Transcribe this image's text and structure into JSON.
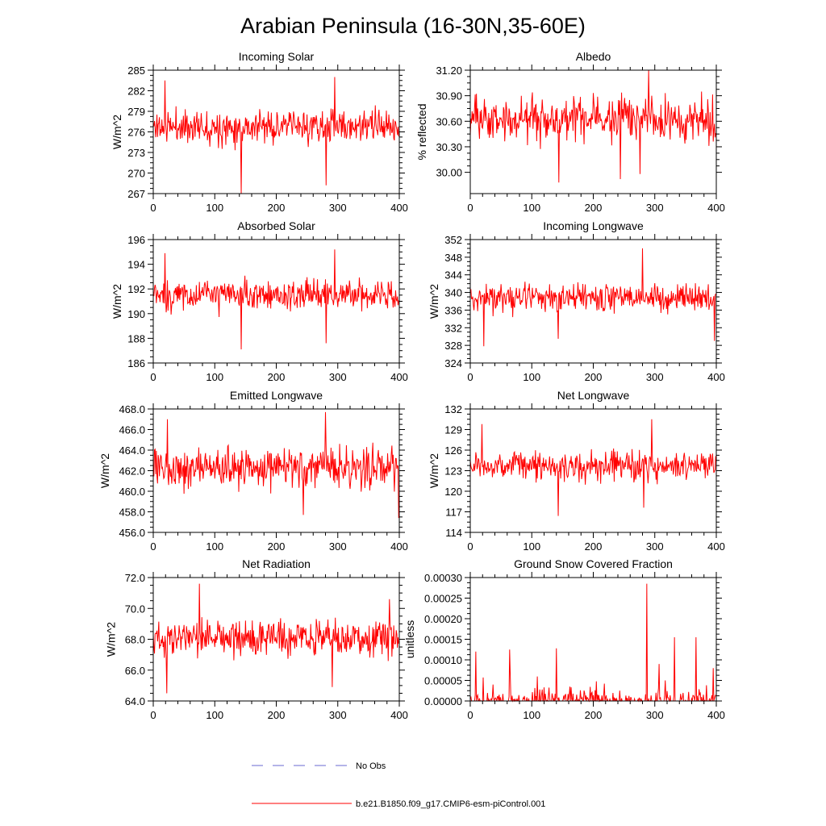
{
  "title": "Arabian Peninsula (16-30N,35-60E)",
  "legend": {
    "obs_label": "No Obs",
    "model_label": "b.e21.B1850.f09_g17.CMIP6-esm-piControl.001",
    "obs_color": "#6a6ad0",
    "model_color": "#ff0000"
  },
  "chart_data": [
    {
      "type": "line",
      "title": "Incoming Solar",
      "ylabel": "W/m^2",
      "xlim": [
        0,
        400
      ],
      "ylim": [
        267,
        285
      ],
      "xticks": [
        0,
        100,
        200,
        300,
        400
      ],
      "xtick_labels": [
        "0",
        "100",
        "200",
        "300",
        "400"
      ],
      "yticks": [
        267,
        270,
        273,
        276,
        279,
        282,
        285
      ],
      "ytick_labels": [
        "267",
        "270",
        "273",
        "276",
        "279",
        "282",
        "285"
      ],
      "mean": 276.8,
      "sd": 2.0,
      "seed": 11,
      "spikes": [
        {
          "x": 143,
          "y": 267.0
        },
        {
          "x": 281,
          "y": 268.2
        },
        {
          "x": 295,
          "y": 284.0
        },
        {
          "x": 19,
          "y": 283.5
        }
      ],
      "series_name": "b.e21.B1850.f09_g17.CMIP6-esm-piControl.001",
      "n_points": 400
    },
    {
      "type": "line",
      "title": "Albedo",
      "ylabel": "% reflected",
      "xlim": [
        0,
        400
      ],
      "ylim": [
        29.75,
        31.2
      ],
      "xticks": [
        0,
        100,
        200,
        300,
        400
      ],
      "xtick_labels": [
        "0",
        "100",
        "200",
        "300",
        "400"
      ],
      "yticks": [
        30.0,
        30.3,
        30.6,
        30.9,
        31.2
      ],
      "ytick_labels": [
        "30.00",
        "30.30",
        "30.60",
        "30.90",
        "31.20"
      ],
      "mean": 30.63,
      "sd": 0.22,
      "seed": 23,
      "spikes": [
        {
          "x": 290,
          "y": 31.2
        },
        {
          "x": 144,
          "y": 29.88
        },
        {
          "x": 244,
          "y": 29.92
        },
        {
          "x": 276,
          "y": 29.98
        }
      ],
      "series_name": "b.e21.B1850.f09_g17.CMIP6-esm-piControl.001",
      "n_points": 400
    },
    {
      "type": "line",
      "title": "Absorbed Solar",
      "ylabel": "W/m^2",
      "xlim": [
        0,
        400
      ],
      "ylim": [
        186,
        196
      ],
      "xticks": [
        0,
        100,
        200,
        300,
        400
      ],
      "xtick_labels": [
        "0",
        "100",
        "200",
        "300",
        "400"
      ],
      "yticks": [
        186,
        188,
        190,
        192,
        194,
        196
      ],
      "ytick_labels": [
        "186",
        "188",
        "190",
        "192",
        "194",
        "196"
      ],
      "mean": 191.5,
      "sd": 1.05,
      "seed": 37,
      "spikes": [
        {
          "x": 143,
          "y": 187.1
        },
        {
          "x": 281,
          "y": 187.6
        },
        {
          "x": 295,
          "y": 195.2
        },
        {
          "x": 19,
          "y": 194.9
        }
      ],
      "series_name": "b.e21.B1850.f09_g17.CMIP6-esm-piControl.001",
      "n_points": 400
    },
    {
      "type": "line",
      "title": "Incoming Longwave",
      "ylabel": "W/m^2",
      "xlim": [
        0,
        400
      ],
      "ylim": [
        324,
        352
      ],
      "xticks": [
        0,
        100,
        200,
        300,
        400
      ],
      "xtick_labels": [
        "0",
        "100",
        "200",
        "300",
        "400"
      ],
      "yticks": [
        324,
        328,
        332,
        336,
        340,
        344,
        348,
        352
      ],
      "ytick_labels": [
        "324",
        "328",
        "332",
        "336",
        "340",
        "344",
        "348",
        "352"
      ],
      "mean": 338.8,
      "sd": 2.7,
      "seed": 41,
      "spikes": [
        {
          "x": 280,
          "y": 350.0
        },
        {
          "x": 397,
          "y": 329.0
        },
        {
          "x": 22,
          "y": 327.8
        },
        {
          "x": 143,
          "y": 329.5
        }
      ],
      "series_name": "b.e21.B1850.f09_g17.CMIP6-esm-piControl.001",
      "n_points": 400
    },
    {
      "type": "line",
      "title": "Emitted Longwave",
      "ylabel": "W/m^2",
      "xlim": [
        0,
        400
      ],
      "ylim": [
        456,
        468
      ],
      "xticks": [
        0,
        100,
        200,
        300,
        400
      ],
      "xtick_labels": [
        "0",
        "100",
        "200",
        "300",
        "400"
      ],
      "yticks": [
        456,
        458,
        460,
        462,
        464,
        466,
        468
      ],
      "ytick_labels": [
        "456.0",
        "458.0",
        "460.0",
        "462.0",
        "464.0",
        "466.0",
        "468.0"
      ],
      "mean": 462.3,
      "sd": 1.55,
      "seed": 53,
      "spikes": [
        {
          "x": 280,
          "y": 467.7
        },
        {
          "x": 23,
          "y": 467.0
        },
        {
          "x": 244,
          "y": 457.7
        },
        {
          "x": 399,
          "y": 457.4
        }
      ],
      "series_name": "b.e21.B1850.f09_g17.CMIP6-esm-piControl.001",
      "n_points": 400
    },
    {
      "type": "line",
      "title": "Net Longwave",
      "ylabel": "W/m^2",
      "xlim": [
        0,
        400
      ],
      "ylim": [
        114,
        132
      ],
      "xticks": [
        0,
        100,
        200,
        300,
        400
      ],
      "xtick_labels": [
        "0",
        "100",
        "200",
        "300",
        "400"
      ],
      "yticks": [
        114,
        117,
        120,
        123,
        126,
        129,
        132
      ],
      "ytick_labels": [
        "114",
        "117",
        "120",
        "123",
        "126",
        "129",
        "132"
      ],
      "mean": 123.7,
      "sd": 1.8,
      "seed": 67,
      "spikes": [
        {
          "x": 143,
          "y": 116.4
        },
        {
          "x": 282,
          "y": 117.6
        },
        {
          "x": 19,
          "y": 129.8
        },
        {
          "x": 295,
          "y": 130.5
        }
      ],
      "series_name": "b.e21.B1850.f09_g17.CMIP6-esm-piControl.001",
      "n_points": 400
    },
    {
      "type": "line",
      "title": "Net Radiation",
      "ylabel": "W/m^2",
      "xlim": [
        0,
        400
      ],
      "ylim": [
        64,
        72
      ],
      "xticks": [
        0,
        100,
        200,
        300,
        400
      ],
      "xtick_labels": [
        "0",
        "100",
        "200",
        "300",
        "400"
      ],
      "yticks": [
        64,
        66,
        68,
        70,
        72
      ],
      "ytick_labels": [
        "64.0",
        "66.0",
        "68.0",
        "70.0",
        "72.0"
      ],
      "mean": 68.1,
      "sd": 1.0,
      "seed": 79,
      "spikes": [
        {
          "x": 75,
          "y": 71.6
        },
        {
          "x": 22,
          "y": 64.5
        },
        {
          "x": 291,
          "y": 64.9
        },
        {
          "x": 384,
          "y": 70.6
        }
      ],
      "series_name": "b.e21.B1850.f09_g17.CMIP6-esm-piControl.001",
      "n_points": 400
    },
    {
      "type": "line",
      "title": "Ground Snow Covered Fraction",
      "ylabel": "unitless",
      "xlim": [
        0,
        400
      ],
      "ylim": [
        0,
        0.0003
      ],
      "xticks": [
        0,
        100,
        200,
        300,
        400
      ],
      "xtick_labels": [
        "0",
        "100",
        "200",
        "300",
        "400"
      ],
      "yticks": [
        0,
        5e-05,
        0.0001,
        0.00015,
        0.0002,
        0.00025,
        0.0003
      ],
      "ytick_labels": [
        "0.00000",
        "0.00005",
        "0.00010",
        "0.00015",
        "0.00020",
        "0.00025",
        "0.00030"
      ],
      "sparse": true,
      "seed": 97,
      "spikes": [
        {
          "x": 9,
          "y": 0.00012
        },
        {
          "x": 64,
          "y": 0.000125
        },
        {
          "x": 140,
          "y": 0.000128
        },
        {
          "x": 287,
          "y": 0.000285
        },
        {
          "x": 332,
          "y": 0.000155
        },
        {
          "x": 367,
          "y": 0.000155
        },
        {
          "x": 395,
          "y": 8e-05
        },
        {
          "x": 307,
          "y": 9e-05
        }
      ],
      "series_name": "b.e21.B1850.f09_g17.CMIP6-esm-piControl.001",
      "n_points": 400
    }
  ]
}
